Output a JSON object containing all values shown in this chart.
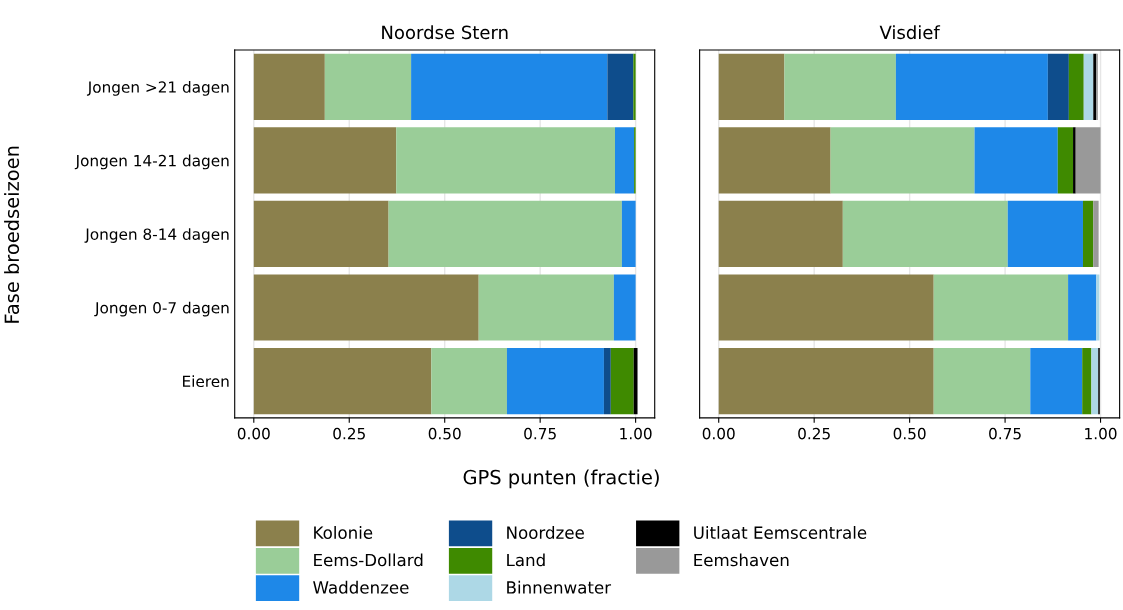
{
  "chart_data": [
    {
      "type": "bar",
      "orientation": "horizontal",
      "stacked": true,
      "title": "Noordse Stern",
      "xlabel": "GPS punten (fractie)",
      "ylabel": "Fase broedseizoen",
      "categories": [
        "Jongen >21 dagen",
        "Jongen 14-21 dagen",
        "Jongen 8-14 dagen",
        "Jongen 0-7 dagen",
        "Eieren"
      ],
      "series": [
        {
          "name": "Kolonie",
          "color": "#8b804c",
          "values": [
            0.186,
            0.373,
            0.353,
            0.589,
            0.465
          ]
        },
        {
          "name": "Eems-Dollard",
          "color": "#9acd98",
          "values": [
            0.226,
            0.573,
            0.611,
            0.354,
            0.198
          ]
        },
        {
          "name": "Waddenzee",
          "color": "#1e88e8",
          "values": [
            0.514,
            0.05,
            0.036,
            0.057,
            0.254
          ]
        },
        {
          "name": "Noordzee",
          "color": "#0e4d8c",
          "values": [
            0.068,
            0,
            0,
            0,
            0.018
          ]
        },
        {
          "name": "Land",
          "color": "#3f8a00",
          "values": [
            0.006,
            0.004,
            0,
            0,
            0.06
          ]
        },
        {
          "name": "Binnenwater",
          "color": "#add8e6",
          "values": [
            0,
            0,
            0,
            0,
            0
          ]
        },
        {
          "name": "Uitlaat Eemscentrale",
          "color": "#000000",
          "values": [
            0,
            0,
            0,
            0,
            0.01
          ]
        },
        {
          "name": "Eemshaven",
          "color": "#999999",
          "values": [
            0,
            0,
            0,
            0,
            0
          ]
        }
      ],
      "xlim": [
        -0.05,
        1.05
      ],
      "xticks": [
        {
          "value": 0,
          "label": "0.00"
        },
        {
          "value": 0.25,
          "label": "0.25"
        },
        {
          "value": 0.5,
          "label": "0.50"
        },
        {
          "value": 0.75,
          "label": "0.75"
        },
        {
          "value": 1,
          "label": "1.00"
        }
      ],
      "grid": "x",
      "legend": "bottom"
    },
    {
      "type": "bar",
      "orientation": "horizontal",
      "stacked": true,
      "title": "Visdief",
      "categories": [
        null,
        null,
        null,
        null,
        null
      ],
      "series": [
        {
          "color": "#8b804c",
          "values": [
            0.172,
            0.293,
            0.325,
            0.563,
            0.563
          ]
        },
        {
          "color": "#9acd98",
          "values": [
            0.292,
            0.377,
            0.432,
            0.352,
            0.253
          ]
        },
        {
          "color": "#1e88e8",
          "values": [
            0.398,
            0.218,
            0.197,
            0.074,
            0.136
          ]
        },
        {
          "color": "#0e4d8c",
          "values": [
            0.055,
            0,
            0,
            0,
            0
          ]
        },
        {
          "color": "#3f8a00",
          "values": [
            0.039,
            0.04,
            0.027,
            0,
            0.024
          ]
        },
        {
          "color": "#add8e6",
          "values": [
            0.025,
            0,
            0,
            0.008,
            0.018
          ]
        },
        {
          "color": "#000000",
          "values": [
            0.008,
            0.007,
            0,
            0,
            0.004
          ]
        },
        {
          "color": "#999999",
          "values": [
            0.004,
            0.065,
            0.014,
            0,
            0
          ]
        }
      ],
      "xlim": [
        -0.05,
        1.05
      ],
      "xticks": [
        {
          "value": 0,
          "label": "0.00"
        },
        {
          "value": 0.25,
          "label": "0.25"
        },
        {
          "value": 0.5,
          "label": "0.50"
        },
        {
          "value": 0.75,
          "label": "0.75"
        },
        {
          "value": 1,
          "label": "1.00"
        }
      ],
      "grid": "x",
      "tick_labels": "x"
    }
  ]
}
